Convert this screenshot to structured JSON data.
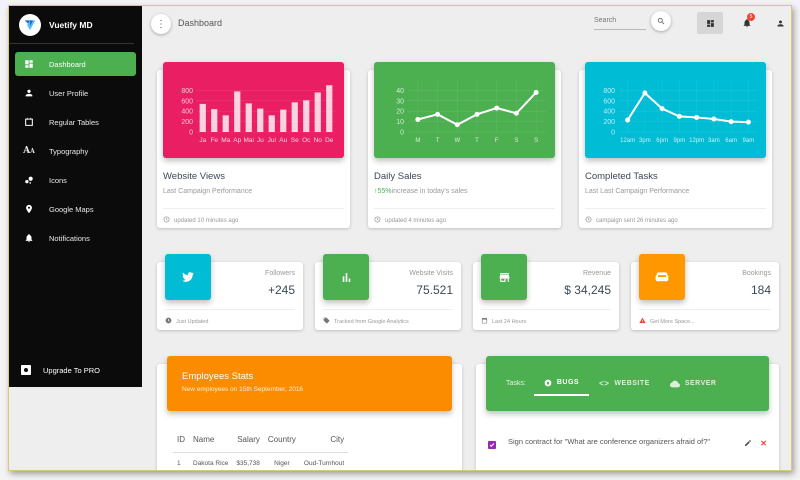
{
  "sidebar": {
    "brand": "Vuetify MD",
    "items": [
      {
        "label": "Dashboard",
        "icon": "dashboard-icon",
        "active": true
      },
      {
        "label": "User Profile",
        "icon": "person-icon"
      },
      {
        "label": "Regular Tables",
        "icon": "table-icon"
      },
      {
        "label": "Typography",
        "icon": "typography-icon"
      },
      {
        "label": "Icons",
        "icon": "bubble-icon"
      },
      {
        "label": "Google Maps",
        "icon": "map-pin-icon"
      },
      {
        "label": "Notifications",
        "icon": "bell-icon"
      }
    ],
    "upgrade": "Upgrade To PRO"
  },
  "topbar": {
    "title": "Dashboard",
    "search_placeholder": "Search",
    "notification_count": "5"
  },
  "chart_cards": [
    {
      "title": "Website Views",
      "subtitle": "Last Campaign Performance",
      "footer": "updated 10 minutes ago",
      "color": "#e91e63"
    },
    {
      "title": "Daily Sales",
      "subtitle_highlight": "55%",
      "subtitle": "increase in today's sales",
      "footer": "updated 4 minutes ago",
      "color": "#4caf50"
    },
    {
      "title": "Completed Tasks",
      "subtitle": "Last Last Campaign Performance",
      "footer": "campaign sent 26 minutes ago",
      "color": "#00bcd4"
    }
  ],
  "chart_data": [
    {
      "type": "bar",
      "title": "Website Views",
      "categories": [
        "Ja",
        "Fe",
        "Ma",
        "Ap",
        "Mai",
        "Ju",
        "Jul",
        "Au",
        "Se",
        "Oc",
        "No",
        "De"
      ],
      "values": [
        540,
        440,
        320,
        780,
        550,
        450,
        320,
        430,
        570,
        610,
        760,
        900
      ],
      "ylim": [
        0,
        1000
      ],
      "yticks": [
        0,
        200,
        400,
        600,
        800
      ]
    },
    {
      "type": "line",
      "title": "Daily Sales",
      "categories": [
        "M",
        "T",
        "W",
        "T",
        "F",
        "S",
        "S"
      ],
      "values": [
        12,
        17,
        7,
        17,
        23,
        18,
        38
      ],
      "ylim": [
        0,
        50
      ],
      "yticks": [
        0,
        10,
        20,
        30,
        40
      ]
    },
    {
      "type": "line",
      "title": "Completed Tasks",
      "categories": [
        "12am",
        "3pm",
        "6pm",
        "9pm",
        "12pm",
        "3am",
        "6am",
        "9am"
      ],
      "values": [
        230,
        750,
        450,
        300,
        280,
        250,
        200,
        190
      ],
      "ylim": [
        0,
        1000
      ],
      "yticks": [
        0,
        200,
        400,
        600,
        800
      ]
    }
  ],
  "stat_cards": [
    {
      "label": "Followers",
      "value": "+245",
      "footer": "Just Updated",
      "color": "#00bcd4",
      "icon": "twitter-icon"
    },
    {
      "label": "Website Visits",
      "value": "75.521",
      "footer": "Tracked from Google Analytics",
      "color": "#4caf50",
      "icon": "poll-icon"
    },
    {
      "label": "Revenue",
      "value": "$ 34,245",
      "footer": "Last 24 Hours",
      "color": "#4caf50",
      "icon": "store-icon"
    },
    {
      "label": "Bookings",
      "value": "184",
      "footer": "Get More Space...",
      "color": "#ff9800",
      "icon": "sofa-icon"
    }
  ],
  "employees": {
    "title": "Employees Stats",
    "subtitle": "New employees on 15th September, 2016",
    "headers": [
      "ID",
      "Name",
      "Salary",
      "Country",
      "City"
    ],
    "rows": [
      [
        "1",
        "Dakota Rice",
        "$35,738",
        "Niger",
        "Oud-Turnhout"
      ]
    ]
  },
  "tasks": {
    "label": "Tasks:",
    "tabs": [
      "BUGS",
      "WEBSITE",
      "SERVER"
    ],
    "items": [
      {
        "text": "Sign contract for \"What are conference organizers afraid of?\"",
        "checked": true
      }
    ]
  }
}
